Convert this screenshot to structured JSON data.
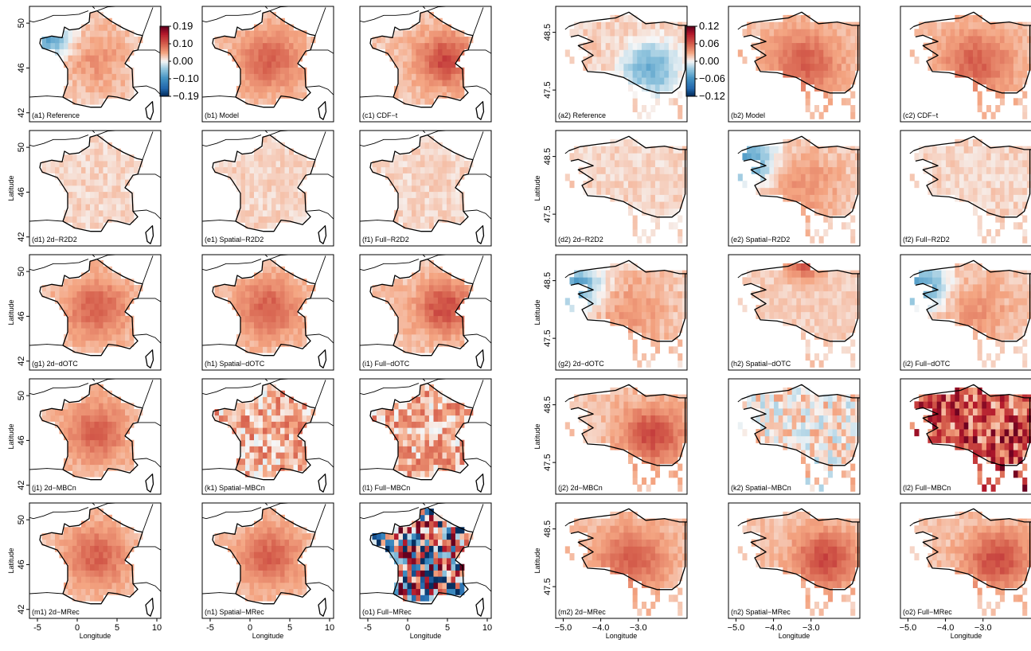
{
  "colors": {
    "negative_strong": "#1f5fa0",
    "neutral": "#f7f7f7",
    "positive_strong": "#8e0f1f",
    "coastline": "#000000"
  },
  "chart_data": [
    {
      "type": "heatmap",
      "region": "France",
      "xlabel": "Longitude",
      "ylabel": "Latitude",
      "x_ticks": [
        "-5",
        "0",
        "5",
        "10"
      ],
      "y_ticks": [
        "42",
        "46",
        "50"
      ],
      "xlim": [
        -6,
        10.5
      ],
      "ylim": [
        41.2,
        51.5
      ],
      "colorbar": {
        "ticks": [
          "0.19",
          "0.10",
          "0.00",
          "−0.10",
          "−0.19"
        ],
        "range": [
          -0.19,
          0.19
        ]
      },
      "panels": [
        {
          "label": "(a1) Reference",
          "approx_mean": 0.01,
          "pattern": "west-negative"
        },
        {
          "label": "(b1) Model",
          "approx_mean": 0.04,
          "pattern": "central-positive"
        },
        {
          "label": "(c1) CDF−t",
          "approx_mean": 0.06,
          "pattern": "east-positive"
        },
        {
          "label": "(d1) 2d−R2D2",
          "approx_mean": 0.02,
          "pattern": "uniform-weak"
        },
        {
          "label": "(e1) Spatial−R2D2",
          "approx_mean": 0.02,
          "pattern": "uniform-weak"
        },
        {
          "label": "(f1) Full−R2D2",
          "approx_mean": 0.02,
          "pattern": "uniform-weak"
        },
        {
          "label": "(g1) 2d−dOTC",
          "approx_mean": 0.08,
          "pattern": "central-positive"
        },
        {
          "label": "(h1) Spatial−dOTC",
          "approx_mean": 0.07,
          "pattern": "central-positive"
        },
        {
          "label": "(i1) Full−dOTC",
          "approx_mean": 0.09,
          "pattern": "east-positive"
        },
        {
          "label": "(j1) 2d−MBCn",
          "approx_mean": 0.07,
          "pattern": "central-positive"
        },
        {
          "label": "(k1) Spatial−MBCn",
          "approx_mean": 0.04,
          "pattern": "noisy-positive"
        },
        {
          "label": "(l1) Full−MBCn",
          "approx_mean": 0.07,
          "pattern": "noisy-positive"
        },
        {
          "label": "(m1) 2d−MRec",
          "approx_mean": 0.06,
          "pattern": "central-positive"
        },
        {
          "label": "(n1) Spatial−MRec",
          "approx_mean": 0.07,
          "pattern": "central-positive"
        },
        {
          "label": "(o1) Full−MRec",
          "approx_mean": 0.0,
          "pattern": "random-strong"
        }
      ]
    },
    {
      "type": "heatmap",
      "region": "Brittany",
      "xlabel": "Longitude",
      "ylabel": "Latitude",
      "x_ticks": [
        "−5.0",
        "−4.0",
        "−3.0"
      ],
      "y_ticks": [
        "47.5",
        "48.5"
      ],
      "xlim": [
        -5.2,
        -1.7
      ],
      "ylim": [
        46.95,
        48.95
      ],
      "colorbar": {
        "ticks": [
          "0.12",
          "0.06",
          "0.00",
          "−0.06",
          "−0.12"
        ],
        "range": [
          -0.12,
          0.12
        ]
      },
      "panels": [
        {
          "label": "(a2) Reference",
          "approx_mean": -0.01,
          "pattern": "east-negative"
        },
        {
          "label": "(b2) Model",
          "approx_mean": 0.03,
          "pattern": "central-positive"
        },
        {
          "label": "(c2) CDF−t",
          "approx_mean": 0.02,
          "pattern": "central-positive"
        },
        {
          "label": "(d2) 2d−R2D2",
          "approx_mean": 0.03,
          "pattern": "uniform-weak"
        },
        {
          "label": "(e2) Spatial−R2D2",
          "approx_mean": -0.02,
          "pattern": "west-negative"
        },
        {
          "label": "(f2) Full−R2D2",
          "approx_mean": 0.03,
          "pattern": "uniform-weak"
        },
        {
          "label": "(g2) 2d−dOTC",
          "approx_mean": 0.01,
          "pattern": "west-negative"
        },
        {
          "label": "(h2) Spatial−dOTC",
          "approx_mean": 0.02,
          "pattern": "north-positive"
        },
        {
          "label": "(i2) Full−dOTC",
          "approx_mean": 0.01,
          "pattern": "west-negative"
        },
        {
          "label": "(j2) 2d−MBCn",
          "approx_mean": 0.06,
          "pattern": "east-positive"
        },
        {
          "label": "(k2) Spatial−MBCn",
          "approx_mean": 0.01,
          "pattern": "noisy-weak"
        },
        {
          "label": "(l2) Full−MBCn",
          "approx_mean": 0.1,
          "pattern": "noisy-strong"
        },
        {
          "label": "(m2) 2d−MRec",
          "approx_mean": 0.02,
          "pattern": "central-positive"
        },
        {
          "label": "(n2) Spatial−MRec",
          "approx_mean": 0.02,
          "pattern": "east-positive"
        },
        {
          "label": "(o2) Full−MRec",
          "approx_mean": 0.02,
          "pattern": "east-positive"
        }
      ]
    }
  ]
}
